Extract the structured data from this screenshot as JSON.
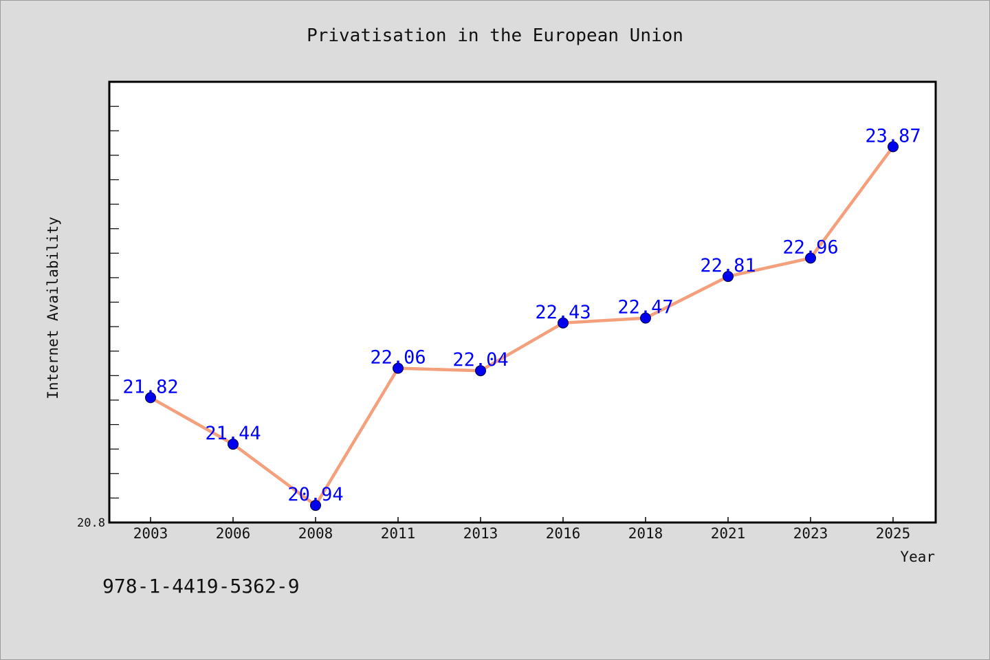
{
  "chart_data": {
    "type": "line",
    "title": "Privatisation in the European Union",
    "xlabel": "Year",
    "ylabel": "Internet Availability",
    "categories": [
      "2003",
      "2006",
      "2008",
      "2011",
      "2013",
      "2016",
      "2018",
      "2021",
      "2023",
      "2025"
    ],
    "series": [
      {
        "values": [
          21.82,
          21.44,
          20.94,
          22.06,
          22.04,
          22.43,
          22.47,
          22.81,
          22.96,
          23.87
        ]
      }
    ],
    "ylim": [
      20.8,
      24.4
    ],
    "y_tick_label": "20.8",
    "grid": false,
    "colors": {
      "line": "#f4a07c",
      "marker": "#0000ee",
      "data_label": "#0000ff",
      "background": "#dcdcdc",
      "plot_area": "#ffffff"
    }
  },
  "footer_text": "978-1-4419-5362-9"
}
